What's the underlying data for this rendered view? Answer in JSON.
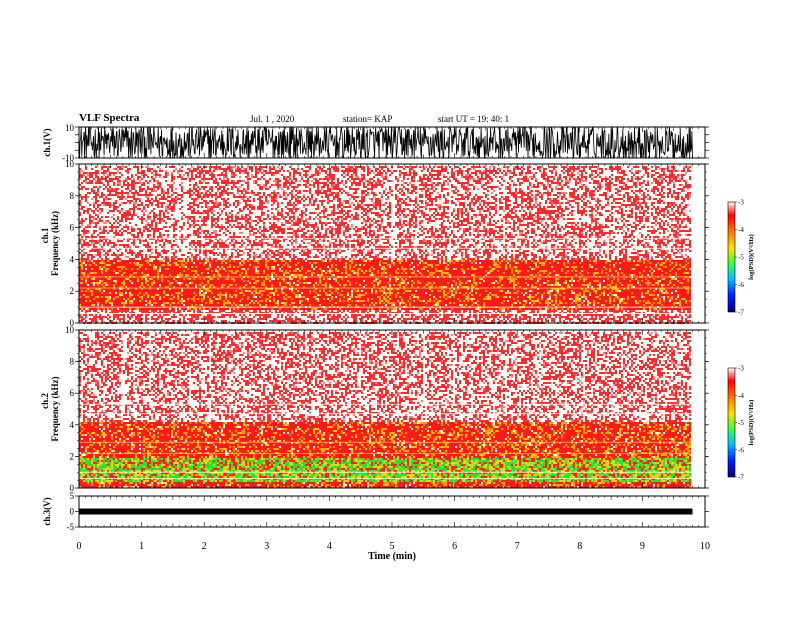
{
  "header": {
    "title": "VLF Spectra",
    "date": "Jul. 1 , 2020",
    "station": "station= KAP",
    "start": "start UT = 19: 40: 1"
  },
  "chart_data": [
    {
      "type": "line",
      "panel": "ch1-waveform",
      "ylabel": "ch.1(V)",
      "ylim": [
        -10,
        10
      ],
      "y_ticks": [
        "10",
        "-10"
      ],
      "xlim": [
        0,
        10
      ],
      "description_values": {
        "x_end_min": 9.8,
        "amplitude": "saturating noise between -10 and 10"
      }
    },
    {
      "type": "heatmap",
      "panel": "ch1-spectrogram",
      "ylabel": "Frequency (kHz)",
      "channel_label": "ch.1",
      "ylim": [
        0,
        10
      ],
      "y_ticks": [
        "0",
        "2",
        "4",
        "6",
        "8",
        "10"
      ],
      "xlim": [
        0,
        10
      ],
      "x_end_min": 9.8,
      "intensity_by_frequency": [
        {
          "f_kHz": [
            0,
            0.9
          ],
          "level": "white-red"
        },
        {
          "f_kHz": [
            0.9,
            4.0
          ],
          "level": "red-yellow"
        },
        {
          "f_kHz": [
            4.0,
            10
          ],
          "level": "sparse red"
        }
      ],
      "colorbar": {
        "label": "log(PSD)(V²/Hz)",
        "min": -7,
        "max": -3,
        "ticks": [
          "-3",
          "-4",
          "-5",
          "-6",
          "-7"
        ]
      }
    },
    {
      "type": "heatmap",
      "panel": "ch2-spectrogram",
      "ylabel": "Frequency (kHz)",
      "channel_label": "ch.2",
      "ylim": [
        0,
        10
      ],
      "y_ticks": [
        "0",
        "2",
        "4",
        "6",
        "8",
        "10"
      ],
      "xlim": [
        0,
        10
      ],
      "x_end_min": 9.8,
      "intensity_by_frequency": [
        {
          "f_kHz": [
            0,
            0.5
          ],
          "level": "red-yellow"
        },
        {
          "f_kHz": [
            0.5,
            2.0
          ],
          "level": "green-yellow"
        },
        {
          "f_kHz": [
            2.0,
            4.3
          ],
          "level": "red-yellow"
        },
        {
          "f_kHz": [
            4.3,
            10
          ],
          "level": "sparse red"
        }
      ],
      "colorbar": {
        "label": "log(PSD)(V²/Hz)",
        "min": -7,
        "max": -3,
        "ticks": [
          "-3",
          "-4",
          "-5",
          "-6",
          "-7"
        ]
      }
    },
    {
      "type": "line",
      "panel": "ch3-waveform",
      "ylabel": "ch.3(V)",
      "ylim": [
        -5,
        5
      ],
      "y_ticks": [
        "5",
        "0",
        "-5"
      ],
      "xlim": [
        0,
        10
      ],
      "x_end_min": 9.8,
      "level_V": 0
    }
  ],
  "x_axis": {
    "label": "Time (min)",
    "ticks": [
      "0",
      "1",
      "2",
      "3",
      "4",
      "5",
      "6",
      "7",
      "8",
      "9",
      "10"
    ]
  },
  "colors": {
    "ink": "#000000",
    "spectrum_red": "#ff2020",
    "spectrum_yellow": "#ffd200",
    "spectrum_green": "#40e040"
  }
}
